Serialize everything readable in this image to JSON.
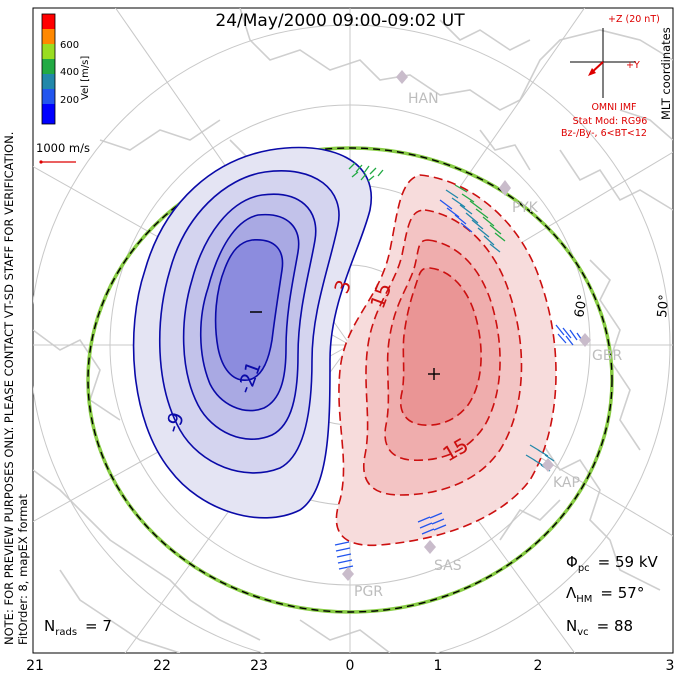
{
  "title": "24/May/2000 09:00-09:02 UT",
  "side_note": "NOTE: FOR PREVIEW PURPOSES ONLY. PLEASE CONTACT VT-SD STAFF FOR VERIFICATION.",
  "coords": "MLT coordinates",
  "fit_order": "FitOrder: 8, mapEX format",
  "colorbar": {
    "label": "Vel [m/s]",
    "ticks": [
      "600",
      "400",
      "200"
    ],
    "colors": [
      "#ff0000",
      "#ff8800",
      "#99dd22",
      "#22aa44",
      "#2288aa",
      "#2255ee",
      "#0000ff"
    ]
  },
  "vector_scale": "1000 m/s",
  "imf": {
    "z_label": "+Z (20 nT)",
    "y_label": "+Y",
    "omni": "OMNI IMF",
    "stat_mod": "Stat Mod: RG96",
    "stat_cond": "Bz-/By-, 6<BT<12"
  },
  "stations": [
    "HAN",
    "PYK",
    "GBR",
    "KAP",
    "SAS",
    "PGR"
  ],
  "latitudes": [
    "60°",
    "50°"
  ],
  "contour_labels": {
    "neg": [
      "-21",
      "-9"
    ],
    "pos": [
      "3",
      "15",
      "15"
    ]
  },
  "stats": {
    "phi_sym": "Φ",
    "phi_sub": "pc",
    "phi_val": "= 59 kV",
    "lambda_sym": "Λ",
    "lambda_sub": "HM",
    "lambda_val": "= 57°",
    "nvc_sym": "N",
    "nvc_sub": "vc",
    "nvc_val": "= 88",
    "nrads_sym": "N",
    "nrads_sub": "rads",
    "nrads_val": "= 7"
  },
  "mlt_axis": [
    "21",
    "22",
    "23",
    "0",
    "1",
    "2",
    "3"
  ],
  "colors": {
    "neg_contour": "#0a0aa8",
    "pos_contour": "#cc1010",
    "boundary_green": "#88cc44",
    "land": "#cfcfcf",
    "grid": "#c8c8c8",
    "imf_red": "#dd0000"
  }
}
